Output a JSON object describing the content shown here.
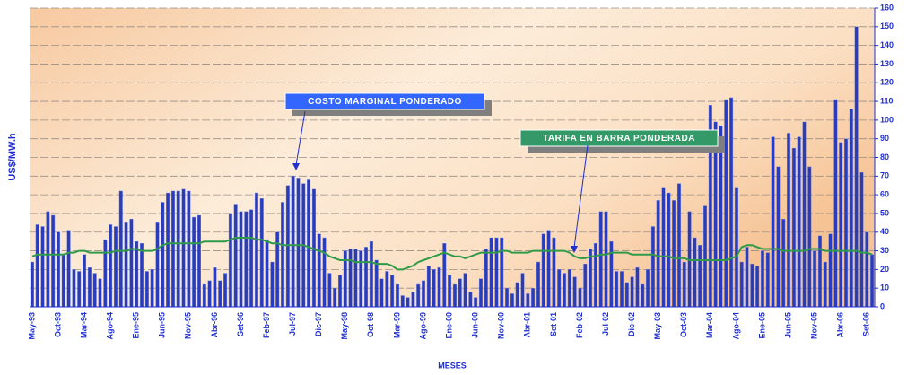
{
  "chart_data": {
    "type": "bar",
    "ylabel": "US$/MW.h",
    "xlabel": "MESES",
    "categories": [
      "May-93",
      null,
      null,
      null,
      null,
      "Oct-93",
      null,
      null,
      null,
      null,
      "Mar-94",
      null,
      null,
      null,
      null,
      "Ago-94",
      null,
      null,
      null,
      null,
      "Ene-95",
      null,
      null,
      null,
      null,
      "Jun-95",
      null,
      null,
      null,
      null,
      "Nov-95",
      null,
      null,
      null,
      null,
      "Abr-96",
      null,
      null,
      null,
      null,
      "Set-96",
      null,
      null,
      null,
      null,
      "Feb-97",
      null,
      null,
      null,
      null,
      "Jul-97",
      null,
      null,
      null,
      null,
      "Dic-97",
      null,
      null,
      null,
      null,
      "May-98",
      null,
      null,
      null,
      null,
      "Oct-98",
      null,
      null,
      null,
      null,
      "Mar-99",
      null,
      null,
      null,
      null,
      "Ago-99",
      null,
      null,
      null,
      null,
      "Ene-00",
      null,
      null,
      null,
      null,
      "Jun-00",
      null,
      null,
      null,
      null,
      "Nov-00",
      null,
      null,
      null,
      null,
      "Abr-01",
      null,
      null,
      null,
      null,
      "Set-01",
      null,
      null,
      null,
      null,
      "Feb-02",
      null,
      null,
      null,
      null,
      "Jul-02",
      null,
      null,
      null,
      null,
      "Dic-02",
      null,
      null,
      null,
      null,
      "May-03",
      null,
      null,
      null,
      null,
      "Oct-03",
      null,
      null,
      null,
      null,
      "Mar-04",
      null,
      null,
      null,
      null,
      "Ago-04",
      null,
      null,
      null,
      null,
      "Ene-05",
      null,
      null,
      null,
      null,
      "Jun-05",
      null,
      null,
      null,
      null,
      "Nov-05",
      null,
      null,
      null,
      null,
      "Abr-06",
      null,
      null,
      null,
      null,
      "Set-06",
      null
    ],
    "series": [
      {
        "name": "COSTO MARGINAL PONDERADO",
        "type": "bar",
        "color": "#2b3cb8",
        "values": [
          24,
          44,
          43,
          51,
          49,
          40,
          28,
          41,
          20,
          19,
          28,
          21,
          18,
          15,
          36,
          44,
          43,
          62,
          45,
          47,
          35,
          34,
          19,
          20,
          45,
          56,
          61,
          62,
          62,
          63,
          62,
          48,
          49,
          12,
          14,
          21,
          14,
          18,
          50,
          55,
          51,
          51,
          52,
          61,
          58,
          36,
          24,
          40,
          56,
          65,
          70,
          69,
          66,
          68,
          63,
          39,
          37,
          18,
          10,
          17,
          30,
          31,
          31,
          30,
          32,
          35,
          25,
          15,
          19,
          17,
          12,
          6,
          5,
          8,
          12,
          14,
          22,
          20,
          21,
          34,
          17,
          12,
          15,
          18,
          8,
          5,
          15,
          31,
          37,
          37,
          37,
          10,
          7,
          13,
          18,
          7,
          10,
          24,
          39,
          41,
          37,
          20,
          18,
          20,
          16,
          10,
          23,
          31,
          34,
          51,
          51,
          35,
          19,
          19,
          13,
          16,
          21,
          12,
          20,
          43,
          57,
          64,
          61,
          57,
          66,
          24,
          51,
          37,
          33,
          54,
          108,
          99,
          97,
          111,
          112,
          64,
          24,
          32,
          23,
          22,
          30,
          29,
          91,
          75,
          47,
          93,
          85,
          91,
          99,
          75,
          30,
          38,
          24,
          39,
          111,
          88,
          90,
          106,
          150,
          72,
          40,
          28
        ]
      },
      {
        "name": "TARIFA EN BARRA PONDERADA",
        "type": "line",
        "color": "#2f9a48",
        "values": [
          27,
          28,
          28,
          28,
          28,
          28,
          28,
          29,
          29,
          30,
          30,
          29,
          29,
          29,
          29,
          29,
          30,
          30,
          30,
          31,
          31,
          30,
          30,
          30,
          31,
          33,
          34,
          34,
          34,
          34,
          34,
          34,
          34,
          35,
          35,
          35,
          35,
          35,
          36,
          37,
          37,
          37,
          37,
          36,
          36,
          35,
          34,
          34,
          33,
          33,
          33,
          33,
          33,
          32,
          31,
          30,
          29,
          27,
          26,
          25,
          25,
          25,
          24,
          24,
          24,
          24,
          23,
          23,
          23,
          22,
          20,
          20,
          21,
          22,
          24,
          25,
          26,
          27,
          28,
          29,
          28,
          27,
          27,
          26,
          27,
          28,
          29,
          29,
          29,
          29,
          30,
          30,
          29,
          29,
          29,
          29,
          30,
          30,
          30,
          30,
          30,
          30,
          30,
          29,
          27,
          26,
          26,
          27,
          27,
          28,
          28,
          29,
          29,
          29,
          29,
          28,
          28,
          28,
          28,
          28,
          27,
          27,
          27,
          26,
          26,
          26,
          25,
          25,
          25,
          25,
          25,
          25,
          25,
          25,
          26,
          27,
          32,
          33,
          33,
          32,
          31,
          31,
          31,
          31,
          30,
          30,
          30,
          30,
          30,
          31,
          31,
          31,
          30,
          30,
          30,
          30,
          30,
          30,
          30,
          29,
          29,
          28
        ]
      }
    ],
    "ylim": [
      0,
      160
    ],
    "yticks": [
      0,
      10,
      20,
      30,
      40,
      50,
      60,
      70,
      80,
      90,
      100,
      110,
      120,
      130,
      140,
      150,
      160
    ],
    "grid": true,
    "y_axis_side": "right"
  }
}
